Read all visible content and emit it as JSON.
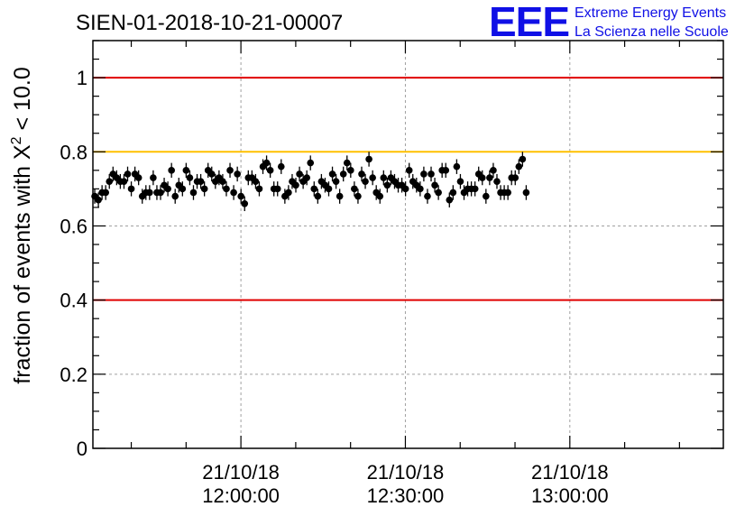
{
  "chart_data": {
    "type": "scatter",
    "title": "SIEN-01-2018-10-21-00007",
    "ylabel_prefix": "fraction of events with X",
    "ylabel_sup": "2",
    "ylabel_suffix": " < 10.0",
    "xlabel": "",
    "ylim": [
      0,
      1.1
    ],
    "y_ticks": [
      0,
      0.2,
      0.4,
      0.6,
      0.8,
      1
    ],
    "y_tick_labels": [
      "0",
      "0.2",
      "0.4",
      "0.6",
      "0.8",
      "1"
    ],
    "x_range": [
      "21/10/18 11:33:00",
      "21/10/18 13:28:00"
    ],
    "x_ticks": [
      {
        "date": "21/10/18",
        "time": "12:00:00"
      },
      {
        "date": "21/10/18",
        "time": "12:30:00"
      },
      {
        "date": "21/10/18",
        "time": "13:00:00"
      }
    ],
    "grid": true,
    "reference_lines": [
      {
        "y": 1.0,
        "color": "#e00000"
      },
      {
        "y": 0.8,
        "color": "#ffc000"
      },
      {
        "y": 0.4,
        "color": "#e00000"
      }
    ],
    "series": [
      {
        "marker_color": "#000000",
        "error": 0.02,
        "x_start": "21/10/18 11:33:20",
        "x_step_minutes": 0.667,
        "values": [
          0.68,
          0.67,
          0.69,
          0.69,
          0.72,
          0.74,
          0.73,
          0.72,
          0.72,
          0.74,
          0.7,
          0.74,
          0.73,
          0.68,
          0.69,
          0.69,
          0.73,
          0.69,
          0.69,
          0.71,
          0.7,
          0.75,
          0.68,
          0.71,
          0.7,
          0.75,
          0.73,
          0.69,
          0.72,
          0.72,
          0.7,
          0.75,
          0.74,
          0.72,
          0.73,
          0.72,
          0.7,
          0.75,
          0.69,
          0.74,
          0.68,
          0.66,
          0.73,
          0.73,
          0.72,
          0.7,
          0.76,
          0.77,
          0.75,
          0.7,
          0.7,
          0.76,
          0.68,
          0.69,
          0.72,
          0.71,
          0.74,
          0.72,
          0.73,
          0.77,
          0.7,
          0.68,
          0.72,
          0.71,
          0.7,
          0.74,
          0.72,
          0.68,
          0.74,
          0.77,
          0.75,
          0.7,
          0.68,
          0.74,
          0.72,
          0.78,
          0.73,
          0.69,
          0.68,
          0.73,
          0.71,
          0.73,
          0.72,
          0.71,
          0.71,
          0.7,
          0.75,
          0.72,
          0.71,
          0.7,
          0.74,
          0.68,
          0.74,
          0.71,
          0.69,
          0.75,
          0.75,
          0.67,
          0.69,
          0.76,
          0.72,
          0.69,
          0.7,
          0.7,
          0.7,
          0.74,
          0.73,
          0.68,
          0.73,
          0.75,
          0.72,
          0.69,
          0.69,
          0.69,
          0.73,
          0.73,
          0.76,
          0.78,
          0.69
        ]
      }
    ]
  },
  "logo": {
    "mark": "EEE",
    "line1": "Extreme Energy Events",
    "line2": "La Scienza nelle Scuole"
  }
}
